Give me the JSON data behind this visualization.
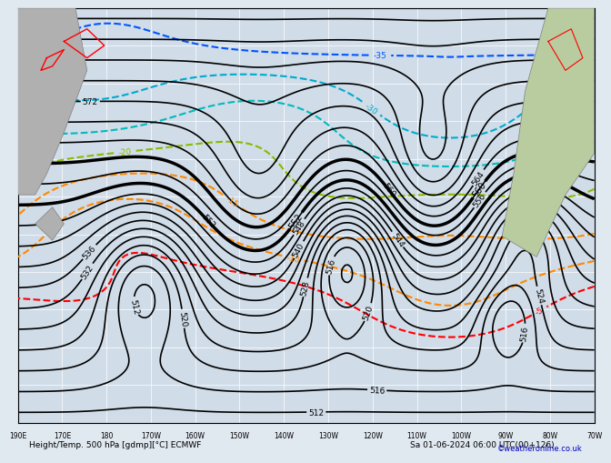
{
  "title": "Height/Temp. 500 hPa [gdmp][°C] ECMWF",
  "subtitle": "Sa 01-06-2024 06:00 UTC(00+126)",
  "copyright": "©weatheronline.co.uk",
  "xlabel_ticks": [
    "190E",
    "170E",
    "180",
    "170W",
    "160W",
    "150W",
    "140W",
    "130W",
    "120W",
    "110W",
    "100W",
    "90W",
    "80W",
    "70W"
  ],
  "background_color": "#d8e8f0",
  "land_color_left": "#c8c8c8",
  "land_color_right": "#c8d8a0",
  "grid_color": "#ffffff",
  "z500_color": "#000000",
  "temp_neg5_color": "#ff0000",
  "temp_neg10_color": "#ff8800",
  "temp_neg15_color": "#ff8800",
  "temp_neg20_color": "#88cc00",
  "temp_neg25_color": "#00cccc",
  "temp_neg30_color": "#00aacc",
  "temp_neg35_color": "#0055ff",
  "bottom_bar_color": "#d0d0d0",
  "bottom_text_color": "#000000",
  "copyright_color": "#0000cc"
}
